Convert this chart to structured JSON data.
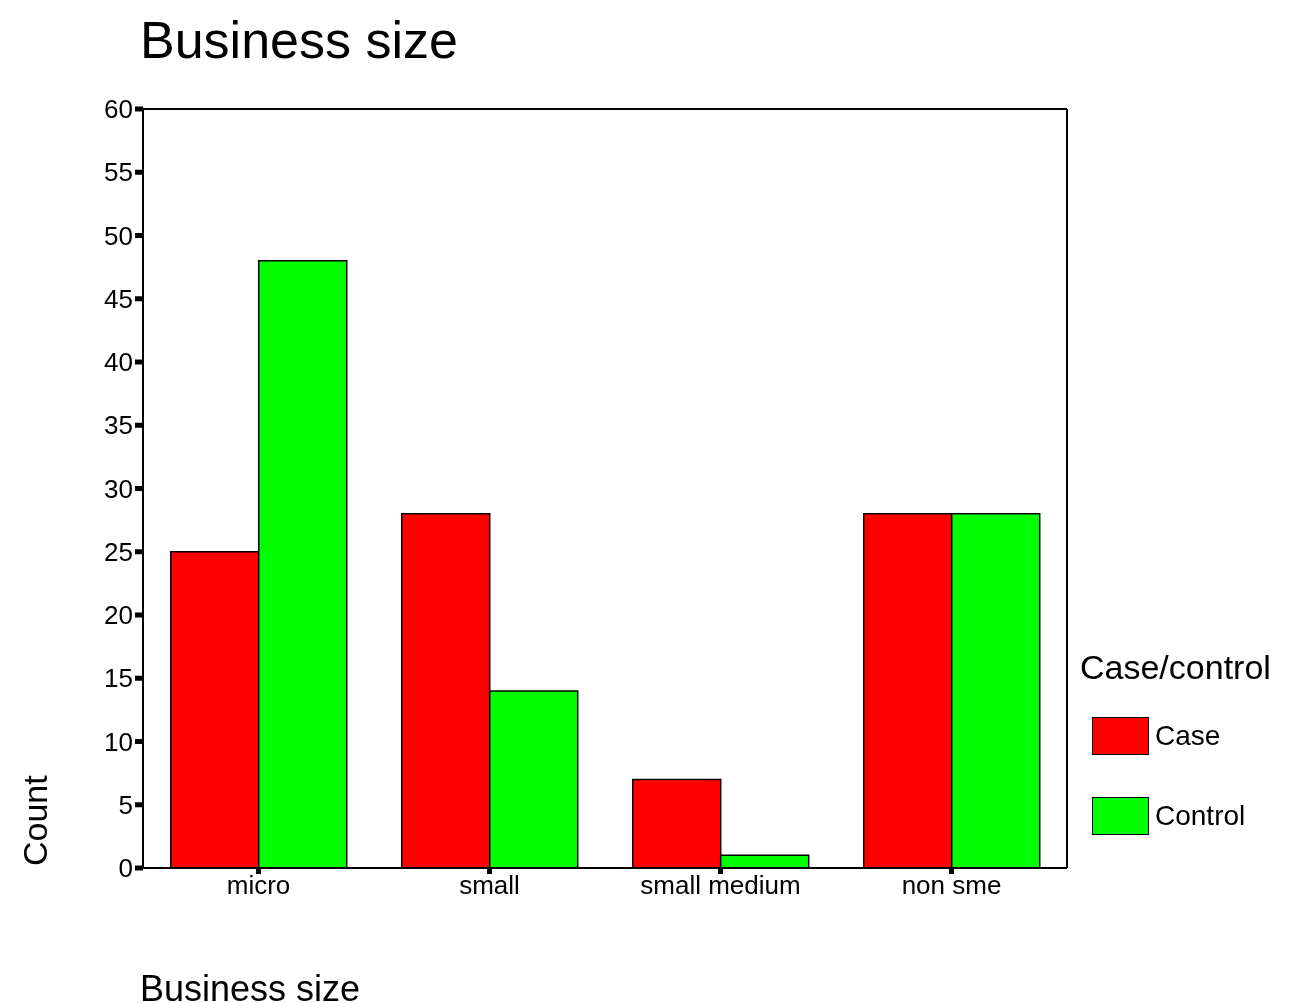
{
  "chart_data": {
    "type": "bar",
    "title": "Business size",
    "xlabel": "Business size",
    "ylabel": "Count",
    "legend_title": "Case/control",
    "categories": [
      "micro",
      "small",
      "small medium",
      "non sme"
    ],
    "series": [
      {
        "name": "Case",
        "color": "#ff0000",
        "values": [
          25,
          28,
          7,
          28
        ]
      },
      {
        "name": "Control",
        "color": "#00ff00",
        "values": [
          48,
          14,
          1,
          28
        ]
      }
    ],
    "ylim": [
      0,
      60
    ],
    "yticks": [
      0,
      5,
      10,
      15,
      20,
      25,
      30,
      35,
      40,
      45,
      50,
      55,
      60
    ],
    "legend": "right"
  }
}
